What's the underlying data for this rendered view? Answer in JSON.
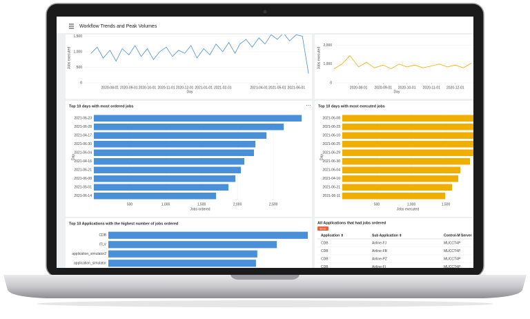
{
  "header": {
    "title": "Workflow Trends and Peak Volumes"
  },
  "charts": [
    {
      "type": "line",
      "y_label": "Jobs executed",
      "x_label": "Day",
      "x": [
        "2020-07-01",
        "2020-07-11",
        "2020-07-21",
        "2020-08-01",
        "2020-08-11",
        "2020-08-21",
        "2020-09-01",
        "2020-09-11",
        "2020-09-21",
        "2020-10-01",
        "2020-10-11",
        "2020-10-21",
        "2020-11-01",
        "2020-11-11",
        "2020-11-21",
        "2020-12-01",
        "2020-12-11",
        "2020-12-21",
        "2021-01-01",
        "2021-01-11",
        "2021-01-21",
        "2021-02-01",
        "2021-02-11",
        "2021-02-21",
        "2021-03-01",
        "2021-03-11",
        "2021-03-21",
        "2021-04-01",
        "2021-04-11",
        "2021-04-21",
        "2021-05-01",
        "2021-05-11",
        "2021-05-21",
        "2021-06-01",
        "2021-06-11",
        "2021-06-21"
      ],
      "series": [
        {
          "color": "#4a90d9",
          "values": [
            950,
            1150,
            800,
            1050,
            700,
            1100,
            900,
            1200,
            850,
            1100,
            750,
            1000,
            1150,
            850,
            1050,
            950,
            1200,
            800,
            1100,
            900,
            1250,
            1000,
            1300,
            950,
            1250,
            1400,
            1150,
            1450,
            1250,
            1550,
            1400,
            1600,
            1350,
            1550,
            1500,
            300
          ]
        }
      ],
      "xlim": [
        "2020-06-20",
        "2021-06-22"
      ],
      "ylim": [
        0,
        1600
      ],
      "xticks": [
        "2020-08-01",
        "2020-09-01",
        "2020-10-01",
        "2020-11-01",
        "2020-12-01",
        "2021-01-01",
        "2021-02-01",
        "2021-04-01",
        "2021-05-01",
        "2021-06-01"
      ],
      "yticks": [
        0,
        500,
        {
          "value": 1000,
          "label": "1,000"
        },
        {
          "value": 1500,
          "label": "1,500"
        }
      ]
    },
    {
      "type": "line",
      "y_label": "Jobs executed",
      "x_label": "Day",
      "x": [
        "2020-07-01",
        "2020-07-11",
        "2020-07-21",
        "2020-08-01",
        "2020-08-11",
        "2020-08-21",
        "2020-09-01",
        "2020-09-11",
        "2020-09-21",
        "2020-10-01",
        "2020-10-11",
        "2020-10-21",
        "2020-11-01",
        "2020-11-11",
        "2020-11-21",
        "2020-12-01",
        "2020-12-11",
        "2020-12-21"
      ],
      "series": [
        {
          "color": "#f0ae00",
          "values": [
            750,
            1000,
            1450,
            850,
            1100,
            800,
            950,
            750,
            1000,
            850,
            950,
            800,
            900,
            1000,
            850,
            950,
            800,
            1050
          ]
        }
      ],
      "xlim": [
        "2020-07-01",
        "2021-01-05"
      ],
      "ylim": [
        0,
        2650
      ],
      "xticks": [
        "2020-08-01",
        "2020-09-01",
        "2020-10-01",
        "2020-11-01",
        "2020-12-01"
      ],
      "yticks": [
        0,
        {
          "value": 1000,
          "label": "1,000"
        },
        {
          "value": 2000,
          "label": "2,000"
        }
      ]
    },
    {
      "type": "hbar",
      "title": "Top 10 days with most ordered jobs",
      "y_label": "Day",
      "x_label": "Jobs ordered",
      "color": "#4a90d9",
      "categories": [
        "2021-06-23",
        "2021-06-28",
        "2021-04-17",
        "2021-06-30",
        "2021-06-04",
        "2021-04-16",
        "2021-06-21",
        "2021-06-08",
        "2021-05-01",
        "2021-06-14"
      ],
      "values": [
        2894,
        2644,
        2404,
        2250,
        2230,
        2096,
        2048,
        1971,
        1875,
        1702
      ],
      "xlim": [
        0,
        2960
      ],
      "xticks": [
        500,
        {
          "value": 1000,
          "label": "1,000"
        },
        {
          "value": 1500,
          "label": "1,500"
        },
        {
          "value": 2000,
          "label": "2,000"
        },
        {
          "value": 2500,
          "label": "2,500"
        }
      ]
    },
    {
      "type": "hbar",
      "title": "Top 10 days with most executed jobs",
      "y_label": "Day",
      "x_label": "Jobs executed",
      "color": "#f0ae00",
      "categories": [
        "2021-06-08",
        "2021-06-23",
        "2021-06-10",
        "2021-06-25",
        "2021-06-29",
        "2021-06-30",
        "2021-06-04",
        "2021-04-16",
        "2021-06-21",
        "2021-06-11"
      ],
      "values": [
        2100,
        2050,
        1990,
        1950,
        1900,
        1850,
        1710,
        1680,
        1590,
        1490
      ],
      "xlim": [
        0,
        2000
      ],
      "xticks": [
        500,
        {
          "value": 1000,
          "label": "1,000"
        },
        {
          "value": 1500,
          "label": "1,500"
        },
        {
          "value": 2000,
          "label": "2,000"
        }
      ]
    },
    {
      "type": "hbar",
      "title": "Top 10 Applications with the highest number of jobs ordered",
      "color": "#4a90d9",
      "categories": [
        "CDB",
        "ITLV",
        "application_simulator2",
        "application_simulator"
      ],
      "values": [
        2960,
        2500,
        2210,
        2190
      ],
      "xlim": [
        0,
        3000
      ]
    }
  ],
  "table": {
    "title": "All Applications that had jobs ordered",
    "badge": "Error",
    "columns": [
      "Application ⇕",
      "Sub Application ⇕",
      "Control-M Server"
    ],
    "rows": [
      [
        "CDB",
        "Airline-FJ",
        "MUCCT4P"
      ],
      [
        "CDB",
        "Airline-FB",
        "MUCCT4P"
      ],
      [
        "CDB",
        "Airline-PZ",
        "MUCCT4P"
      ],
      [
        "CDB",
        "Airline-FI",
        "MUCCT4P"
      ]
    ]
  }
}
